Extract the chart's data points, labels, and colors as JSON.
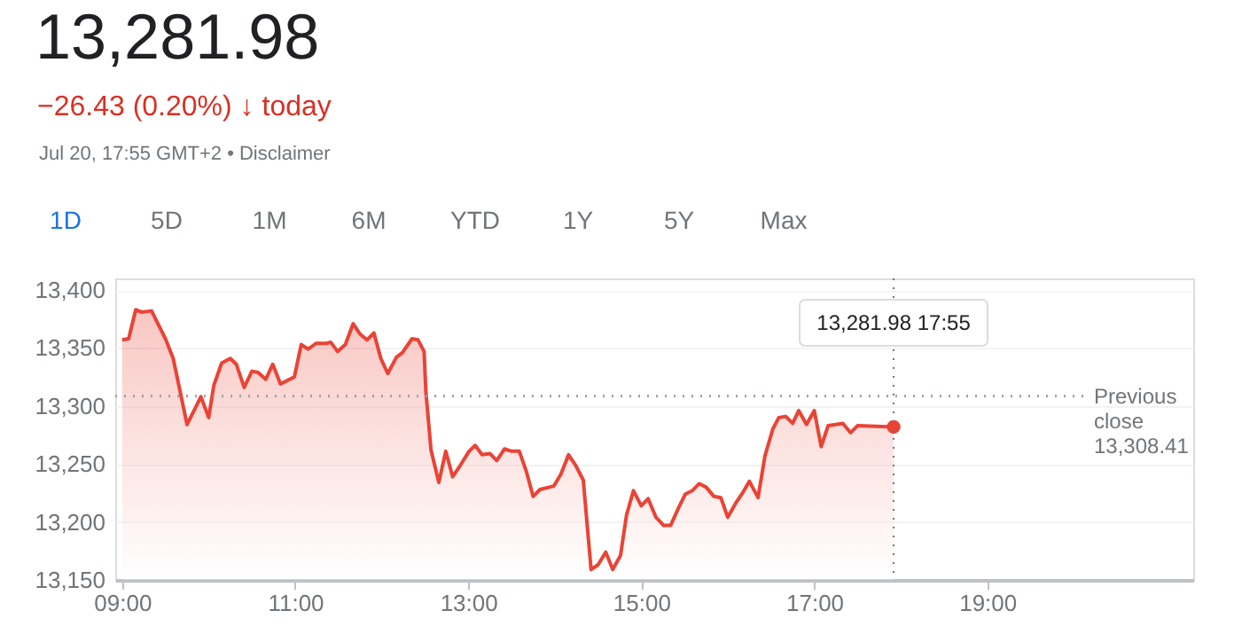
{
  "chart_data": {
    "type": "area",
    "title": "13,281.98",
    "subtitle": "−26.43 (0.20%) ↓ today",
    "annotations": [
      "Jul 20, 17:55 GMT+2 • Disclaimer",
      "1D",
      "5D",
      "1M",
      "6M",
      "YTD",
      "1Y",
      "5Y",
      "Max",
      "13,281.98 17:55"
    ],
    "series": [
      {
        "color": "#ea4335",
        "x": [
          9.0,
          9.075,
          9.157,
          9.225,
          9.34,
          9.5,
          9.59,
          9.75,
          9.91,
          10.0,
          10.06,
          10.15,
          10.25,
          10.32,
          10.41,
          10.5,
          10.57,
          10.66,
          10.74,
          10.83,
          10.99,
          11.07,
          11.15,
          11.24,
          11.36,
          11.41,
          11.49,
          11.58,
          11.67,
          11.75,
          11.83,
          11.91,
          11.99,
          12.07,
          12.17,
          12.24,
          12.35,
          12.42,
          12.49,
          12.51,
          12.57,
          12.66,
          12.74,
          12.82,
          12.91,
          13.01,
          13.08,
          13.16,
          13.25,
          13.33,
          13.42,
          13.5,
          13.59,
          13.67,
          13.75,
          13.83,
          13.99,
          14.07,
          14.16,
          14.24,
          14.33,
          14.42,
          14.5,
          14.59,
          14.67,
          14.76,
          14.83,
          14.91,
          15.0,
          15.08,
          15.17,
          15.26,
          15.34,
          15.43,
          15.51,
          15.59,
          15.67,
          15.75,
          15.84,
          15.92,
          16.0,
          16.09,
          16.18,
          16.25,
          16.35,
          16.43,
          16.52,
          16.59,
          16.67,
          16.75,
          16.82,
          16.91,
          17.0,
          17.08,
          17.16,
          17.25,
          17.33,
          17.42,
          17.5,
          17.917
        ],
        "values": [
          13357,
          13358,
          13383,
          13381,
          13382,
          13358,
          13341,
          13284,
          13308,
          13290,
          13318,
          13337,
          13341,
          13336,
          13316,
          13330,
          13329,
          13323,
          13336,
          13319,
          13325,
          13353,
          13349,
          13354,
          13354,
          13355,
          13347,
          13353,
          13371,
          13362,
          13357,
          13363,
          13341,
          13328,
          13342,
          13346,
          13358,
          13357,
          13347,
          13313,
          13262,
          13234,
          13261,
          13239,
          13249,
          13261,
          13266,
          13258,
          13259,
          13253,
          13263,
          13261,
          13261,
          13244,
          13222,
          13228,
          13231,
          13241,
          13258,
          13249,
          13236,
          13159,
          13163,
          13174,
          13159,
          13171,
          13206,
          13227,
          13214,
          13220,
          13204,
          13197,
          13197,
          13212,
          13224,
          13227,
          13233,
          13230,
          13222,
          13221,
          13204,
          13216,
          13226,
          13235,
          13221,
          13257,
          13280,
          13290,
          13291,
          13285,
          13296,
          13284,
          13296,
          13265,
          13283,
          13284,
          13285,
          13277,
          13283,
          13282
        ]
      },
      {
        "type": "scatter",
        "color": "#ea4335",
        "marker": "circle",
        "x": [
          17.917
        ],
        "values": [
          13282
        ]
      }
    ],
    "xlim": [
      8.92,
      21.38
    ],
    "xticks": [
      {
        "value": 9,
        "label": "09:00"
      },
      {
        "value": 11,
        "label": "11:00"
      },
      {
        "value": 13,
        "label": "13:00"
      },
      {
        "value": 15,
        "label": "15:00"
      },
      {
        "value": 17,
        "label": "17:00"
      },
      {
        "value": 19,
        "label": "19:00"
      }
    ],
    "ylim": [
      13150,
      13410
    ],
    "yticks": [
      {
        "value": 13150,
        "label": "13,150"
      },
      {
        "value": 13200,
        "label": "13,200"
      },
      {
        "value": 13250,
        "label": "13,250"
      },
      {
        "value": 13300,
        "label": "13,300"
      },
      {
        "value": 13350,
        "label": "13,350"
      },
      {
        "value": 13400,
        "label": "13,400"
      }
    ],
    "ref_lines": [
      {
        "axis": "y",
        "value": 13308.41,
        "label": "Previous close 13,308.41",
        "color": "#9aa0a6",
        "line_style": "dotted"
      },
      {
        "axis": "x",
        "value": 17.917,
        "color": "#70757a",
        "line_style": "dotted"
      }
    ],
    "grid": "y",
    "line_style": "solid"
  }
}
